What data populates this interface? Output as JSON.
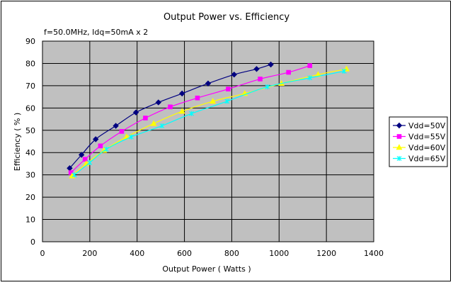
{
  "chart_data": {
    "type": "line",
    "title": "Output Power vs. Efficiency",
    "annotation": "f=50.0MHz, Idq=50mA x 2",
    "xlabel": "Output Power ( Watts )",
    "ylabel": "Efficiency ( % )",
    "xlim": [
      0,
      1400
    ],
    "ylim": [
      0,
      90
    ],
    "x_ticks": [
      0,
      200,
      400,
      600,
      800,
      1000,
      1200,
      1400
    ],
    "y_ticks": [
      0,
      10,
      20,
      30,
      40,
      50,
      60,
      70,
      80,
      90
    ],
    "grid": true,
    "plot_background": "#c0c0c0",
    "legend_position": "right",
    "series": [
      {
        "name": "Vdd=50V",
        "color": "#000080",
        "marker": "diamond",
        "x": [
          115,
          165,
          225,
          310,
          395,
          490,
          590,
          700,
          810,
          905,
          965
        ],
        "y": [
          33,
          39,
          46,
          52,
          58,
          62.5,
          66.5,
          71,
          75,
          77.5,
          79.5
        ]
      },
      {
        "name": "Vdd=55V",
        "color": "#ff00ff",
        "marker": "square",
        "x": [
          120,
          180,
          245,
          335,
          435,
          540,
          655,
          785,
          920,
          1040,
          1130
        ],
        "y": [
          31,
          37,
          43,
          49.5,
          55.5,
          60.5,
          64.5,
          68.5,
          73,
          76,
          79
        ]
      },
      {
        "name": "Vdd=60V",
        "color": "#ffff00",
        "marker": "triangle",
        "x": [
          125,
          185,
          260,
          355,
          470,
          590,
          720,
          855,
          1010,
          1165,
          1285
        ],
        "y": [
          29.5,
          35,
          41,
          47,
          53,
          58.5,
          63,
          66.5,
          71,
          75,
          77.5
        ]
      },
      {
        "name": "Vdd=65V",
        "color": "#00ffff",
        "marker": "x",
        "x": [
          135,
          200,
          270,
          375,
          505,
          630,
          780,
          950,
          1130,
          1275
        ],
        "y": [
          30,
          35.5,
          41.5,
          47,
          52,
          57.5,
          63,
          69.5,
          73.5,
          76.5
        ]
      }
    ]
  }
}
